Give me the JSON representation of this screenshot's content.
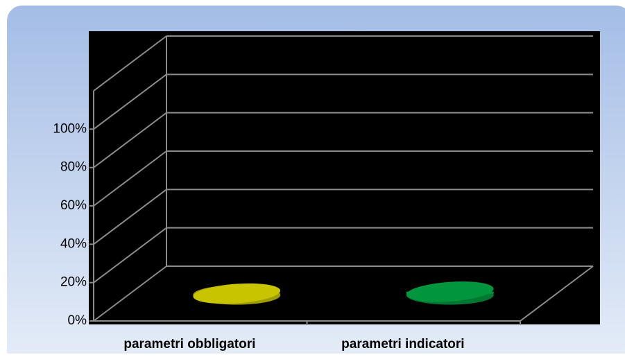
{
  "chart_data": {
    "type": "cylinder",
    "categories": [
      "parametri obbligatori",
      "parametri indicatori"
    ],
    "values": [
      0,
      1
    ],
    "colors": [
      "#c8c400",
      "#00963e"
    ],
    "ylim": [
      0,
      120
    ],
    "yticks": [
      {
        "value": 0,
        "label": "0%"
      },
      {
        "value": 20,
        "label": "20%"
      },
      {
        "value": 40,
        "label": "40%"
      },
      {
        "value": 60,
        "label": "60%"
      },
      {
        "value": 80,
        "label": "80%"
      },
      {
        "value": 100,
        "label": "100%"
      }
    ],
    "grid": true
  }
}
